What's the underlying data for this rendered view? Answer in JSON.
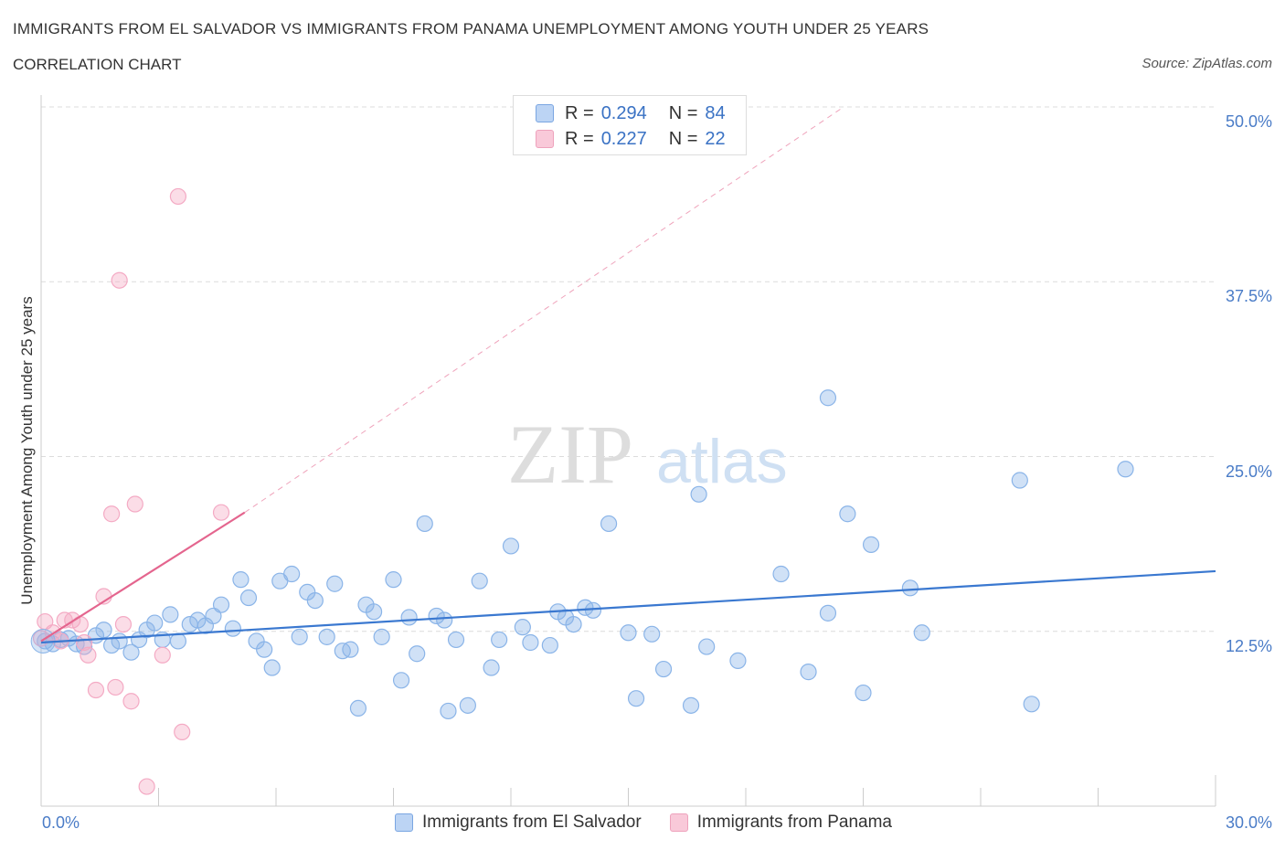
{
  "chart_data": {
    "type": "scatter",
    "title": "IMMIGRANTS FROM EL SALVADOR VS IMMIGRANTS FROM PANAMA UNEMPLOYMENT AMONG YOUTH UNDER 25 YEARS",
    "subtitle": "CORRELATION CHART",
    "source": "Source: ZipAtlas.com",
    "ylabel": "Unemployment Among Youth under 25 years",
    "xlim": [
      0,
      30
    ],
    "ylim": [
      0,
      50
    ],
    "x_tick_labels": [
      "0.0%",
      "30.0%"
    ],
    "y_ticks": [
      12.5,
      25,
      37.5,
      50
    ],
    "y_tick_labels": [
      "12.5%",
      "25.0%",
      "37.5%",
      "50.0%"
    ],
    "watermark": {
      "zip": "ZIP",
      "atlas": "atlas"
    },
    "legend": {
      "r_label": "R =",
      "n_label": "N =",
      "entries": [
        {
          "r": "0.294",
          "n": "84"
        },
        {
          "r": "0.227",
          "n": "22"
        }
      ]
    },
    "series": [
      {
        "name": "Immigrants from El Salvador",
        "color": "#8ab4e8",
        "line_color": "#3a78d0",
        "trend": {
          "x": [
            0,
            30
          ],
          "y": [
            11.7,
            16.8
          ]
        },
        "points": [
          [
            0.1,
            11.8
          ],
          [
            0.3,
            11.6
          ],
          [
            0.5,
            11.9
          ],
          [
            0.7,
            12.0
          ],
          [
            0.9,
            11.6
          ],
          [
            1.1,
            11.4
          ],
          [
            1.4,
            12.2
          ],
          [
            1.6,
            12.6
          ],
          [
            1.8,
            11.5
          ],
          [
            2.0,
            11.8
          ],
          [
            2.3,
            11.0
          ],
          [
            2.5,
            11.9
          ],
          [
            2.7,
            12.6
          ],
          [
            2.9,
            13.1
          ],
          [
            3.1,
            11.9
          ],
          [
            3.3,
            13.7
          ],
          [
            3.5,
            11.8
          ],
          [
            3.8,
            13.0
          ],
          [
            4.0,
            13.3
          ],
          [
            4.2,
            12.9
          ],
          [
            4.4,
            13.6
          ],
          [
            4.6,
            14.4
          ],
          [
            4.9,
            12.7
          ],
          [
            5.1,
            16.2
          ],
          [
            5.3,
            14.9
          ],
          [
            5.5,
            11.8
          ],
          [
            5.7,
            11.2
          ],
          [
            5.9,
            9.9
          ],
          [
            6.1,
            16.1
          ],
          [
            6.4,
            16.6
          ],
          [
            6.6,
            12.1
          ],
          [
            6.8,
            15.3
          ],
          [
            7.0,
            14.7
          ],
          [
            7.3,
            12.1
          ],
          [
            7.5,
            15.9
          ],
          [
            7.7,
            11.1
          ],
          [
            7.9,
            11.2
          ],
          [
            8.1,
            7.0
          ],
          [
            8.3,
            14.4
          ],
          [
            8.5,
            13.9
          ],
          [
            8.7,
            12.1
          ],
          [
            9.0,
            16.2
          ],
          [
            9.2,
            9.0
          ],
          [
            9.4,
            13.5
          ],
          [
            9.6,
            10.9
          ],
          [
            9.8,
            20.2
          ],
          [
            10.1,
            13.6
          ],
          [
            10.3,
            13.3
          ],
          [
            10.4,
            6.8
          ],
          [
            10.6,
            11.9
          ],
          [
            10.9,
            7.2
          ],
          [
            11.2,
            16.1
          ],
          [
            11.5,
            9.9
          ],
          [
            11.7,
            11.9
          ],
          [
            12.0,
            18.6
          ],
          [
            12.3,
            12.8
          ],
          [
            12.5,
            11.7
          ],
          [
            13.0,
            11.5
          ],
          [
            13.2,
            13.9
          ],
          [
            13.4,
            13.5
          ],
          [
            13.6,
            13.0
          ],
          [
            13.9,
            14.2
          ],
          [
            14.1,
            14.0
          ],
          [
            14.5,
            20.2
          ],
          [
            15.0,
            12.4
          ],
          [
            15.2,
            7.7
          ],
          [
            15.6,
            12.3
          ],
          [
            15.9,
            9.8
          ],
          [
            16.6,
            7.2
          ],
          [
            16.8,
            22.3
          ],
          [
            17.0,
            11.4
          ],
          [
            17.8,
            10.4
          ],
          [
            18.9,
            16.6
          ],
          [
            19.6,
            9.6
          ],
          [
            20.1,
            13.8
          ],
          [
            20.1,
            29.2
          ],
          [
            20.6,
            20.9
          ],
          [
            21.0,
            8.1
          ],
          [
            21.2,
            18.7
          ],
          [
            22.2,
            15.6
          ],
          [
            22.5,
            12.4
          ],
          [
            25.0,
            23.3
          ],
          [
            25.3,
            7.3
          ],
          [
            27.7,
            24.1
          ]
        ]
      },
      {
        "name": "Immigrants from Panama",
        "color": "#f4aac4",
        "line_color": "#e4658e",
        "trend": {
          "x": [
            0,
            5.2
          ],
          "y": [
            11.8,
            21.0
          ]
        },
        "extension": {
          "x": [
            5.2,
            20.5
          ],
          "y": [
            21.0,
            50.0
          ]
        },
        "points": [
          [
            0.0,
            12.0
          ],
          [
            0.1,
            13.2
          ],
          [
            0.3,
            12.4
          ],
          [
            0.5,
            11.8
          ],
          [
            0.6,
            13.3
          ],
          [
            0.8,
            13.3
          ],
          [
            1.0,
            13.0
          ],
          [
            1.1,
            11.7
          ],
          [
            1.2,
            10.8
          ],
          [
            1.4,
            8.3
          ],
          [
            1.6,
            15.0
          ],
          [
            1.8,
            20.9
          ],
          [
            1.9,
            8.5
          ],
          [
            2.0,
            37.6
          ],
          [
            2.1,
            13.0
          ],
          [
            2.3,
            7.5
          ],
          [
            2.4,
            21.6
          ],
          [
            2.7,
            1.4
          ],
          [
            3.1,
            10.8
          ],
          [
            3.5,
            43.6
          ],
          [
            3.6,
            5.3
          ],
          [
            4.6,
            21.0
          ]
        ]
      }
    ]
  }
}
